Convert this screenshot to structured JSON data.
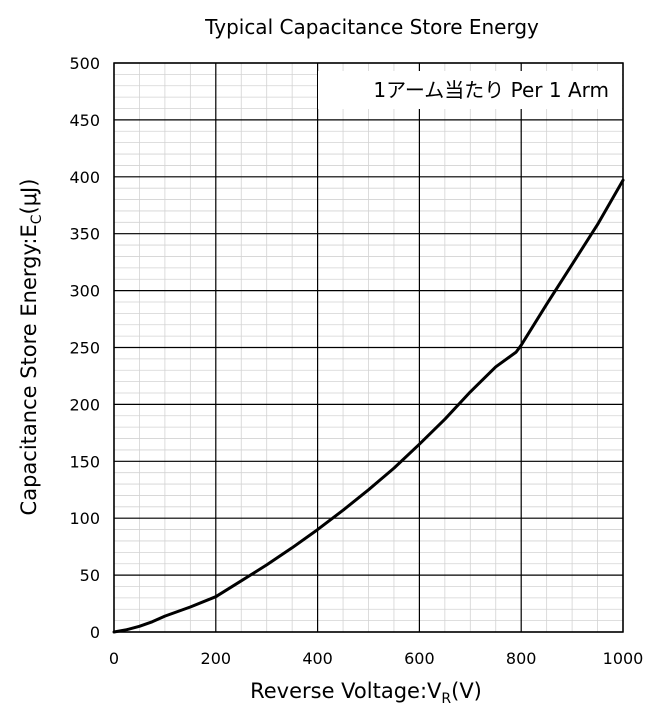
{
  "chart_data": {
    "type": "line",
    "title": "Typical Capacitance Store Energy",
    "xlabel": {
      "main": "Reverse Voltage:V",
      "sub": "R",
      "unit": "(V)"
    },
    "ylabel": {
      "main": "Capacitance Store Energy:E",
      "sub": "C",
      "unit": "(μJ)"
    },
    "annotation": "1アーム当たり Per 1 Arm",
    "xlim": [
      0,
      1000
    ],
    "ylim": [
      0,
      500
    ],
    "x_ticks": [
      "0",
      "200",
      "400",
      "600",
      "800",
      "1000"
    ],
    "y_ticks": [
      "0",
      "50",
      "100",
      "150",
      "200",
      "250",
      "300",
      "350",
      "400",
      "450",
      "500"
    ],
    "grid": true,
    "series": [
      {
        "x": [
          0,
          25,
          50,
          75,
          100,
          150,
          200,
          250,
          300,
          350,
          400,
          450,
          500,
          550,
          600,
          650,
          700,
          750,
          790,
          800,
          850,
          900,
          950,
          1000
        ],
        "y": [
          0,
          2,
          5,
          9,
          14,
          22,
          31,
          45,
          59,
          74,
          90,
          107,
          125,
          144,
          165,
          187,
          211,
          233,
          246,
          252,
          288,
          323,
          358,
          397
        ],
        "color": "#000000"
      }
    ]
  }
}
